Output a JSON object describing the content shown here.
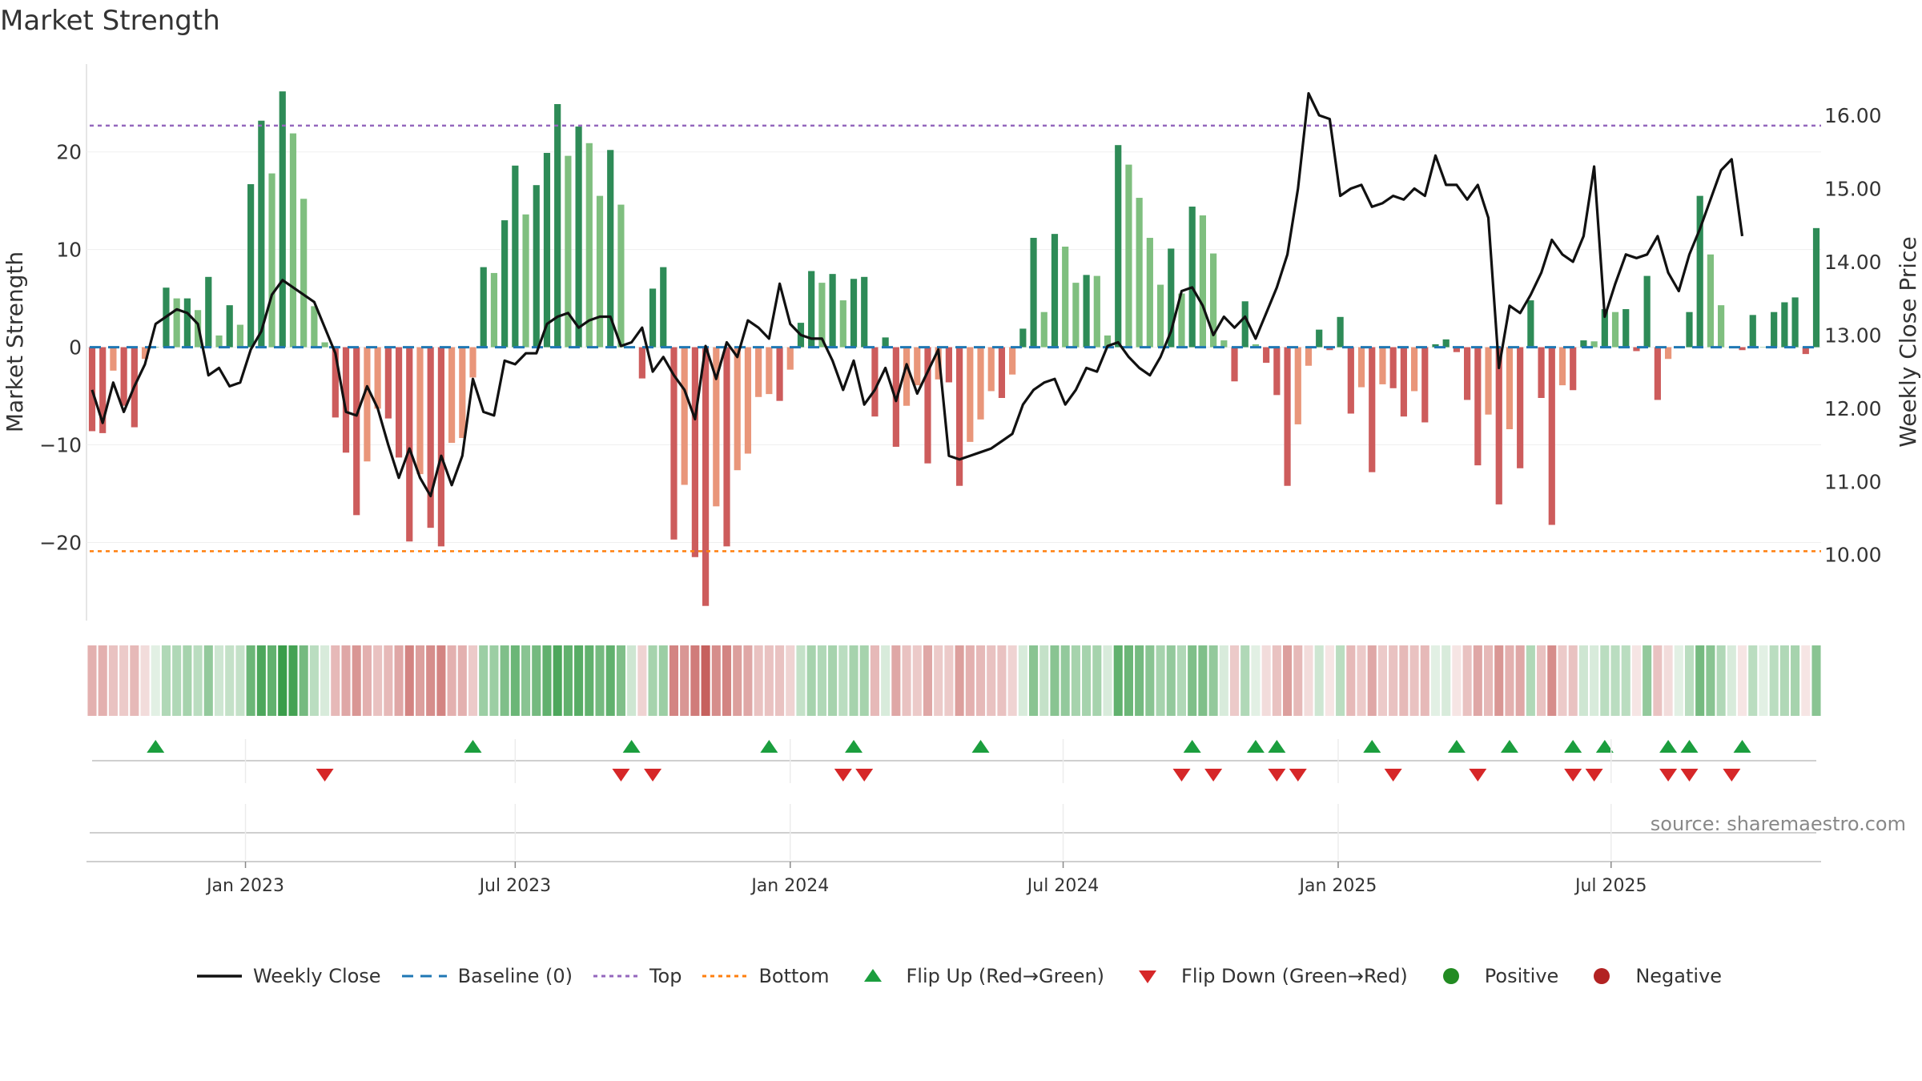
{
  "chart_data": {
    "type": "bar+line",
    "title": "Market Strength",
    "ylabel_left": "Market Strength",
    "ylabel_right": "Weekly Close Price",
    "ylim_left": [
      -28,
      29
    ],
    "ylim_right": [
      9.1,
      16.7
    ],
    "left_ticks": [
      {
        "value": -20,
        "label": "−20"
      },
      {
        "value": -10,
        "label": "−10"
      },
      {
        "value": 0,
        "label": "0"
      },
      {
        "value": 10,
        "label": "10"
      },
      {
        "value": 20,
        "label": "20"
      }
    ],
    "right_ticks": [
      {
        "value": 10,
        "label": "10.00"
      },
      {
        "value": 11,
        "label": "11.00"
      },
      {
        "value": 12,
        "label": "12.00"
      },
      {
        "value": 13,
        "label": "13.00"
      },
      {
        "value": 14,
        "label": "14.00"
      },
      {
        "value": 15,
        "label": "15.00"
      },
      {
        "value": 16,
        "label": "16.00"
      }
    ],
    "x_ticks": [
      {
        "week": 14.5,
        "label": "Jan 2023"
      },
      {
        "week": 40.0,
        "label": "Jul 2023"
      },
      {
        "week": 66.0,
        "label": "Jan 2024"
      },
      {
        "week": 91.8,
        "label": "Jul 2024"
      },
      {
        "week": 117.8,
        "label": "Jan 2025"
      },
      {
        "week": 143.6,
        "label": "Jul 2025"
      }
    ],
    "top_level": 22.7,
    "bottom_level": -20.9,
    "strength": [
      -8.6,
      -8.8,
      -2.4,
      -6,
      -8.2,
      -1.2,
      0,
      6.1,
      5,
      5,
      3.8,
      7.2,
      1.2,
      4.3,
      2.3,
      16.7,
      23.2,
      17.8,
      26.2,
      21.9,
      15.2,
      4.2,
      0.5,
      -7.2,
      -10.8,
      -17.2,
      -11.7,
      -6.3,
      -7.3,
      -11.3,
      -19.9,
      -13,
      -18.5,
      -20.4,
      -9.8,
      -9.3,
      -3.1,
      8.2,
      7.6,
      13,
      18.6,
      13.6,
      16.6,
      19.9,
      24.9,
      19.6,
      22.6,
      20.9,
      15.5,
      20.2,
      14.6,
      0,
      -3.2,
      6,
      8.2,
      -19.7,
      -14.1,
      -21.5,
      -26.5,
      -16.3,
      -20.4,
      -12.6,
      -10.9,
      -5.1,
      -4.8,
      -5.5,
      -2.3,
      2.5,
      7.8,
      6.6,
      7.5,
      4.8,
      7,
      7.2,
      -7.1,
      1,
      -10.2,
      -6,
      -3.9,
      -11.9,
      -3.3,
      -3.6,
      -14.2,
      -9.7,
      -7.4,
      -4.5,
      -5.2,
      -2.8,
      1.9,
      11.2,
      3.6,
      11.6,
      10.3,
      6.6,
      7.4,
      7.3,
      1.2,
      20.7,
      18.7,
      15.3,
      11.2,
      6.4,
      10.1,
      5.5,
      14.4,
      13.5,
      9.6,
      0.7,
      -3.5,
      4.7,
      0.3,
      -1.6,
      -4.9,
      -14.2,
      -7.9,
      -1.9,
      1.8,
      -0.3,
      3.1,
      -6.8,
      -4.1,
      -12.8,
      -3.8,
      -4.2,
      -7.1,
      -4.5,
      -7.7,
      0.3,
      0.8,
      -0.5,
      -5.4,
      -12.1,
      -6.9,
      -16.1,
      -8.4,
      -12.4,
      4.8,
      -5.2,
      -18.2,
      -3.9,
      -4.4,
      0.7,
      0.6,
      3.9,
      3.6,
      3.9,
      -0.4,
      7.3,
      -5.4,
      -1.2,
      0,
      3.6,
      15.5,
      9.5,
      4.3,
      0,
      -0.3,
      3.3,
      0,
      3.6,
      4.6,
      5.1,
      -0.7,
      12.2
    ],
    "weekly_close": [
      12.25,
      11.8,
      12.35,
      11.95,
      12.3,
      12.6,
      13.15,
      13.25,
      13.35,
      13.3,
      13.15,
      12.45,
      12.55,
      12.3,
      12.35,
      12.8,
      13.05,
      13.55,
      13.75,
      13.65,
      13.55,
      13.45,
      13.1,
      12.75,
      11.95,
      11.9,
      12.3,
      12.0,
      11.5,
      11.05,
      11.45,
      11.05,
      10.8,
      11.35,
      10.95,
      11.35,
      12.4,
      11.95,
      11.9,
      12.65,
      12.6,
      12.75,
      12.75,
      13.15,
      13.25,
      13.3,
      13.1,
      13.2,
      13.25,
      13.25,
      12.85,
      12.9,
      13.1,
      12.5,
      12.7,
      12.45,
      12.25,
      11.85,
      12.85,
      12.4,
      12.9,
      12.7,
      13.2,
      13.1,
      12.95,
      13.7,
      13.15,
      13.0,
      12.95,
      12.95,
      12.65,
      12.25,
      12.65,
      12.05,
      12.25,
      12.55,
      12.1,
      12.6,
      12.2,
      12.5,
      12.8,
      11.35,
      11.3,
      11.35,
      11.4,
      11.45,
      11.55,
      11.65,
      12.05,
      12.25,
      12.35,
      12.4,
      12.05,
      12.25,
      12.55,
      12.5,
      12.85,
      12.9,
      12.7,
      12.55,
      12.45,
      12.7,
      13.05,
      13.6,
      13.65,
      13.4,
      13.0,
      13.25,
      13.1,
      13.25,
      12.95,
      13.3,
      13.65,
      14.1,
      15.0,
      16.3,
      16.0,
      15.95,
      14.9,
      15.0,
      15.05,
      14.75,
      14.8,
      14.9,
      14.85,
      15.0,
      14.9,
      15.45,
      15.05,
      15.05,
      14.85,
      15.05,
      14.6,
      12.55,
      13.4,
      13.3,
      13.55,
      13.85,
      14.3,
      14.1,
      14.0,
      14.35,
      15.3,
      13.25,
      13.7,
      14.1,
      14.05,
      14.1,
      14.35,
      13.85,
      13.6,
      14.1,
      14.45,
      14.85,
      15.25,
      15.4,
      14.35
    ],
    "heatstrip_opacity": [
      0.45,
      0.45,
      0.35,
      0.3,
      0.4,
      0.2,
      0.15,
      0.4,
      0.4,
      0.45,
      0.35,
      0.55,
      0.25,
      0.3,
      0.3,
      0.75,
      0.9,
      0.8,
      1.0,
      0.95,
      0.7,
      0.35,
      0.2,
      0.4,
      0.5,
      0.6,
      0.45,
      0.35,
      0.4,
      0.5,
      0.7,
      0.55,
      0.65,
      0.7,
      0.45,
      0.45,
      0.3,
      0.5,
      0.5,
      0.65,
      0.75,
      0.6,
      0.7,
      0.8,
      0.9,
      0.8,
      0.85,
      0.8,
      0.7,
      0.8,
      0.65,
      0.25,
      0.25,
      0.45,
      0.5,
      0.7,
      0.6,
      0.75,
      0.9,
      0.65,
      0.7,
      0.55,
      0.5,
      0.35,
      0.35,
      0.35,
      0.25,
      0.3,
      0.45,
      0.4,
      0.45,
      0.35,
      0.45,
      0.45,
      0.4,
      0.2,
      0.5,
      0.35,
      0.3,
      0.5,
      0.3,
      0.3,
      0.55,
      0.45,
      0.4,
      0.35,
      0.35,
      0.25,
      0.2,
      0.6,
      0.3,
      0.6,
      0.55,
      0.45,
      0.45,
      0.45,
      0.2,
      0.8,
      0.75,
      0.7,
      0.6,
      0.45,
      0.55,
      0.4,
      0.65,
      0.65,
      0.55,
      0.2,
      0.3,
      0.4,
      0.15,
      0.2,
      0.35,
      0.55,
      0.4,
      0.2,
      0.25,
      0.15,
      0.35,
      0.4,
      0.3,
      0.5,
      0.3,
      0.35,
      0.4,
      0.35,
      0.4,
      0.15,
      0.2,
      0.15,
      0.35,
      0.5,
      0.4,
      0.6,
      0.45,
      0.5,
      0.4,
      0.35,
      0.65,
      0.3,
      0.35,
      0.25,
      0.2,
      0.35,
      0.35,
      0.35,
      0.15,
      0.55,
      0.35,
      0.2,
      0.15,
      0.35,
      0.7,
      0.6,
      0.4,
      0.2,
      0.15,
      0.35,
      0.15,
      0.35,
      0.4,
      0.45,
      0.15,
      0.6
    ],
    "flip_up_weeks": [
      6,
      36,
      51,
      64,
      72,
      84,
      104,
      110,
      112,
      121,
      129,
      134,
      140,
      143,
      149,
      151,
      156
    ],
    "flip_down_weeks": [
      22,
      50,
      53,
      71,
      73,
      103,
      106,
      112,
      114,
      123,
      131,
      140,
      142,
      149,
      151,
      155
    ],
    "colors": {
      "strong_green": "#2e8b57",
      "light_green": "#7fbf7f",
      "strong_red": "#cd5c5c",
      "light_red": "#e9967a",
      "heat_green": "#3a9d4a",
      "heat_red": "#c0504d",
      "close_line": "#111111",
      "baseline": "#1f77b4",
      "top_line": "#9467bd",
      "bottom_line": "#ff7f0e",
      "flip_up": "#1b9e3e",
      "flip_down": "#d62728"
    },
    "legend": [
      {
        "key": "close",
        "label": "Weekly Close",
        "icon": "solid-line"
      },
      {
        "key": "baseline",
        "label": "Baseline (0)",
        "icon": "dashed-line"
      },
      {
        "key": "top",
        "label": "Top",
        "icon": "dotted-line"
      },
      {
        "key": "bottom",
        "label": "Bottom",
        "icon": "dotted-line"
      },
      {
        "key": "flip_up",
        "label": "Flip Up (Red→Green)",
        "icon": "triangle-up"
      },
      {
        "key": "flip_down",
        "label": "Flip Down (Green→Red)",
        "icon": "triangle-down"
      },
      {
        "key": "positive",
        "label": "Positive",
        "icon": "circle",
        "color": "#228b22"
      },
      {
        "key": "negative",
        "label": "Negative",
        "icon": "circle",
        "color": "#b22222"
      }
    ],
    "source": "source: sharemaestro.com"
  }
}
